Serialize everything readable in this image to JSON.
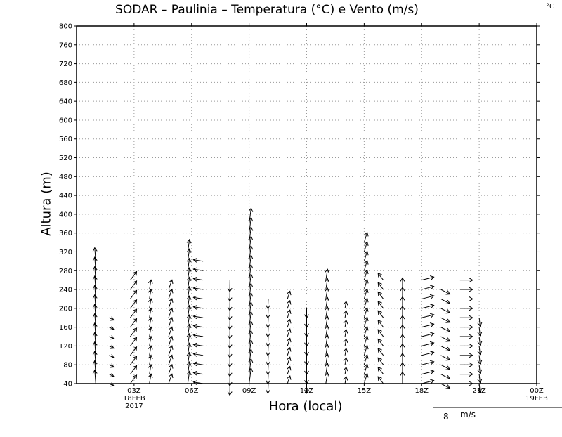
{
  "title": "SODAR  –  Paulinia  –  Temperatura (°C) e Vento (m/s)",
  "corner_unit": "°C",
  "reference_vector": {
    "label": "8",
    "unit": "m/s"
  },
  "chart_data": {
    "type": "vector",
    "title": "SODAR  –  Paulinia  –  Temperatura (°C) e Vento (m/s)",
    "xlabel": "Hora (local)",
    "ylabel": "Altura (m)",
    "ylim": [
      40,
      800
    ],
    "xlim": [
      0,
      24
    ],
    "y_ticks": [
      40,
      80,
      120,
      160,
      200,
      240,
      280,
      320,
      360,
      400,
      440,
      480,
      520,
      560,
      600,
      640,
      680,
      720,
      760,
      800
    ],
    "x_ticks": [
      {
        "hour": 3,
        "label": "03Z",
        "date": "18FEB",
        "year": "2017"
      },
      {
        "hour": 6,
        "label": "06Z",
        "date": "",
        "year": ""
      },
      {
        "hour": 9,
        "label": "09Z",
        "date": "",
        "year": ""
      },
      {
        "hour": 12,
        "label": "12Z",
        "date": "",
        "year": ""
      },
      {
        "hour": 15,
        "label": "15Z",
        "date": "",
        "year": ""
      },
      {
        "hour": 18,
        "label": "18Z",
        "date": "",
        "year": ""
      },
      {
        "hour": 21,
        "label": "21Z",
        "date": "",
        "year": ""
      },
      {
        "hour": 24,
        "label": "00Z",
        "date": "19FEB",
        "year": ""
      }
    ],
    "grid": true,
    "wind_profiles": [
      {
        "hour": 1,
        "top": 300,
        "u": -0.1,
        "v": 3.5
      },
      {
        "hour": 1.7,
        "top": 180,
        "u": 1.2,
        "v": -0.6
      },
      {
        "hour": 2.8,
        "top": 260,
        "u": 1.5,
        "v": 2.2
      },
      {
        "hour": 3.8,
        "top": 240,
        "u": 0.5,
        "v": 2.5
      },
      {
        "hour": 4.8,
        "top": 240,
        "u": 0.8,
        "v": 2.5
      },
      {
        "hour": 5.8,
        "top": 320,
        "u": 0.6,
        "v": 3.2
      },
      {
        "hour": 6.6,
        "top": 300,
        "u": -2.5,
        "v": 0.4
      },
      {
        "hour": 8,
        "top": 260,
        "u": -0.2,
        "v": -3.0
      },
      {
        "hour": 9,
        "top": 380,
        "u": 0.6,
        "v": 4.0
      },
      {
        "hour": 10,
        "top": 220,
        "u": -0.2,
        "v": -2.5
      },
      {
        "hour": 11,
        "top": 220,
        "u": 0.8,
        "v": 2.0
      },
      {
        "hour": 12,
        "top": 200,
        "u": 0.0,
        "v": -2.5
      },
      {
        "hour": 13,
        "top": 260,
        "u": 0.3,
        "v": 2.8
      },
      {
        "hour": 14,
        "top": 200,
        "u": 0.4,
        "v": 1.8
      },
      {
        "hour": 15,
        "top": 340,
        "u": 0.7,
        "v": 2.6
      },
      {
        "hour": 16,
        "top": 260,
        "u": -1.2,
        "v": 1.8
      },
      {
        "hour": 17,
        "top": 240,
        "u": 0.0,
        "v": 3.0
      },
      {
        "hour": 18,
        "top": 260,
        "u": 3.0,
        "v": 0.8
      },
      {
        "hour": 19,
        "top": 240,
        "u": 2.4,
        "v": -1.2
      },
      {
        "hour": 20,
        "top": 260,
        "u": 3.2,
        "v": 0.0
      },
      {
        "hour": 21,
        "top": 180,
        "u": 0.4,
        "v": -2.2
      }
    ]
  }
}
